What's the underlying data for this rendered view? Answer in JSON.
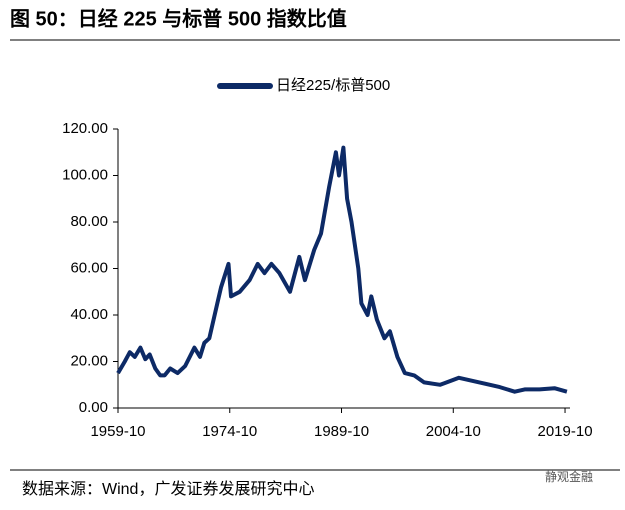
{
  "chart_data": {
    "type": "line",
    "title": "图 50：日经 225 与标普 500 指数比值",
    "source": "数据来源：Wind，广发证券发展研究中心",
    "watermark": "静观金融",
    "legend": "top",
    "x": [
      "1959-10",
      "1960-09",
      "1961-05",
      "1962-01",
      "1962-10",
      "1963-06",
      "1964-01",
      "1964-10",
      "1965-06",
      "1966-01",
      "1966-10",
      "1967-10",
      "1968-10",
      "1970-01",
      "1970-10",
      "1971-05",
      "1972-01",
      "1973-02",
      "1973-08",
      "1974-08",
      "1974-12",
      "1976-02",
      "1977-06",
      "1978-07",
      "1979-06",
      "1980-05",
      "1981-06",
      "1982-11",
      "1984-02",
      "1984-11",
      "1986-02",
      "1987-01",
      "1988-02",
      "1989-01",
      "1989-06",
      "1990-01",
      "1990-07",
      "1991-02",
      "1992-01",
      "1992-06",
      "1993-04",
      "1993-10",
      "1994-07",
      "1995-07",
      "1996-04",
      "1997-04",
      "1998-04",
      "1999-07",
      "2000-11",
      "2003-01",
      "2005-07",
      "2008-04",
      "2011-01",
      "2013-01",
      "2014-05",
      "2016-05",
      "2018-05",
      "2020-01"
    ],
    "series": [
      {
        "name": "日经225/标普500",
        "color": "#0d2a66",
        "values": [
          15,
          20,
          24,
          22,
          26,
          21,
          23,
          17,
          14,
          14,
          17,
          15,
          18,
          26,
          22,
          28,
          30,
          45,
          52,
          62,
          48,
          50,
          55,
          62,
          58,
          62,
          58,
          50,
          65,
          55,
          68,
          75,
          95,
          110,
          100,
          112,
          90,
          80,
          60,
          45,
          40,
          48,
          38,
          30,
          33,
          22,
          15,
          14,
          11,
          10,
          13,
          11,
          9,
          7,
          8,
          8,
          8.5,
          7
        ]
      }
    ],
    "xlim": [
      "1959-10",
      "2020-06"
    ],
    "xticks": [
      "1959-10",
      "1974-10",
      "1989-10",
      "2004-10",
      "2019-10"
    ],
    "ylim": [
      0,
      120
    ],
    "yticks": [
      {
        "value": 0,
        "label": "0.00"
      },
      {
        "value": 20,
        "label": "20.00"
      },
      {
        "value": 40,
        "label": "40.00"
      },
      {
        "value": 60,
        "label": "60.00"
      },
      {
        "value": 80,
        "label": "80.00"
      },
      {
        "value": 100,
        "label": "100.00"
      },
      {
        "value": 120,
        "label": "120.00"
      }
    ],
    "grid": false
  }
}
